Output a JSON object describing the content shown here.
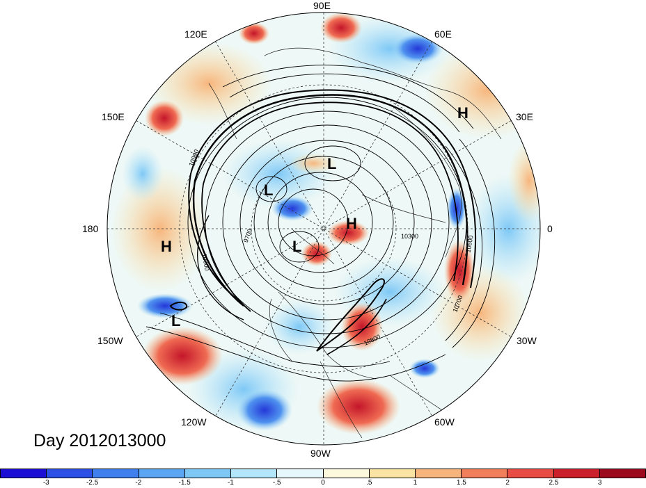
{
  "title": "Day 2012013000",
  "longitude_labels": [
    "90E",
    "60E",
    "30E",
    "0",
    "30W",
    "60W",
    "90W",
    "120W",
    "150W",
    "180",
    "150E",
    "120E"
  ],
  "pressure_systems": [
    "H",
    "L",
    "L",
    "H",
    "L",
    "H",
    "L"
  ],
  "contour_labels": [
    "10900",
    "9700",
    "10000",
    "10300",
    "10600",
    "10700",
    "10800"
  ],
  "colorbar": {
    "ticks": [
      "-3",
      "-2.5",
      "-2",
      "-1.5",
      "-1",
      "-.5",
      "0",
      ".5",
      "1",
      "1.5",
      "2",
      "2.5",
      "3"
    ],
    "colors": [
      "#1b0fd6",
      "#2c4fe6",
      "#3f7fee",
      "#5aa6f2",
      "#7ec8f6",
      "#b4e6fb",
      "#e6f8fc",
      "#fdf9dc",
      "#fbe3a4",
      "#f7b57d",
      "#f27f5b",
      "#e84c45",
      "#cc1f2c",
      "#9c0a1d"
    ]
  }
}
